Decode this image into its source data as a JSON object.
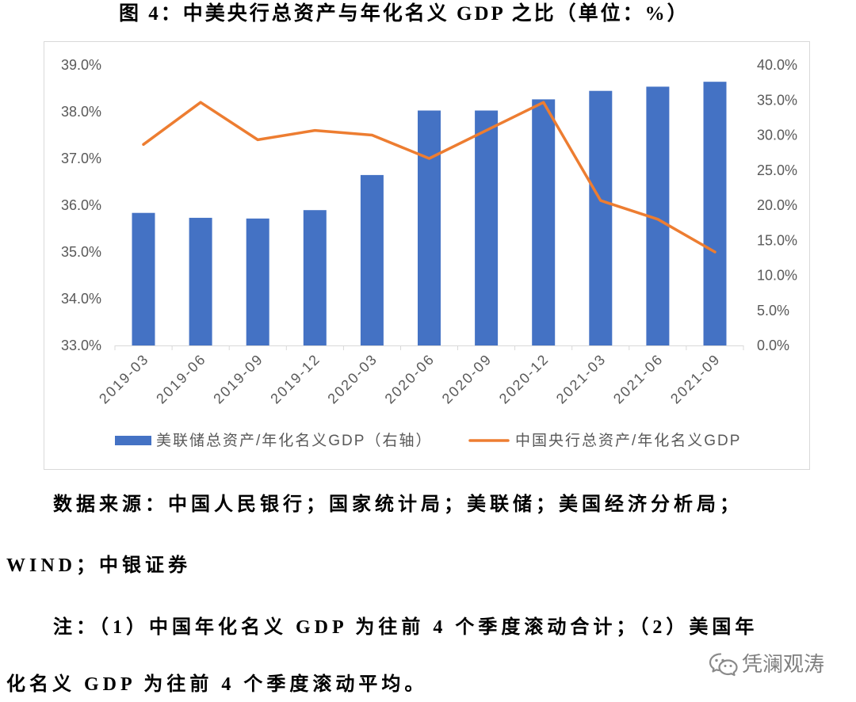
{
  "chart_data": {
    "type": "bar",
    "title": "图 4：中美央行总资产与年化名义 GDP 之比（单位：%）",
    "categories": [
      "2019-03",
      "2019-06",
      "2019-09",
      "2019-12",
      "2020-03",
      "2020-06",
      "2020-09",
      "2020-12",
      "2021-03",
      "2021-06",
      "2021-09"
    ],
    "series": [
      {
        "name": "美联储总资产/年化名义GDP（右轴）",
        "type": "bar",
        "axis": "right",
        "color": "#4472C4",
        "values": [
          18.9,
          18.2,
          18.1,
          19.3,
          24.3,
          33.5,
          33.5,
          35.1,
          36.3,
          36.9,
          37.6
        ]
      },
      {
        "name": "中国央行总资产/年化名义GDP",
        "type": "line",
        "axis": "left",
        "color": "#ED7D31",
        "values": [
          37.3,
          38.2,
          37.4,
          37.6,
          37.5,
          37.0,
          37.6,
          38.2,
          36.1,
          35.7,
          35.0
        ]
      }
    ],
    "y_left": {
      "range": [
        33,
        39
      ],
      "ticks": [
        33,
        34,
        35,
        36,
        37,
        38,
        39
      ],
      "tick_labels": [
        "33.0%",
        "34.0%",
        "35.0%",
        "36.0%",
        "37.0%",
        "38.0%",
        "39.0%"
      ]
    },
    "y_right": {
      "range": [
        0,
        40
      ],
      "ticks": [
        0,
        5,
        10,
        15,
        20,
        25,
        30,
        35,
        40
      ],
      "tick_labels": [
        "0.0%",
        "5.0%",
        "10.0%",
        "15.0%",
        "20.0%",
        "25.0%",
        "30.0%",
        "35.0%",
        "40.0%"
      ]
    },
    "grid": false,
    "legend": "bottom"
  },
  "source": {
    "lines": [
      "数据来源：中国人民银行；国家统计局；美联储；美国经济分析局；",
      "WIND；中银证券"
    ]
  },
  "note": {
    "lines": [
      "注：（1）中国年化名义 GDP 为往前 4 个季度滚动合计；（2）美国年",
      "化名义 GDP 为往前 4 个季度滚动平均。"
    ]
  },
  "watermark": {
    "text": "凭澜观涛",
    "icon": "wechat-icon"
  }
}
